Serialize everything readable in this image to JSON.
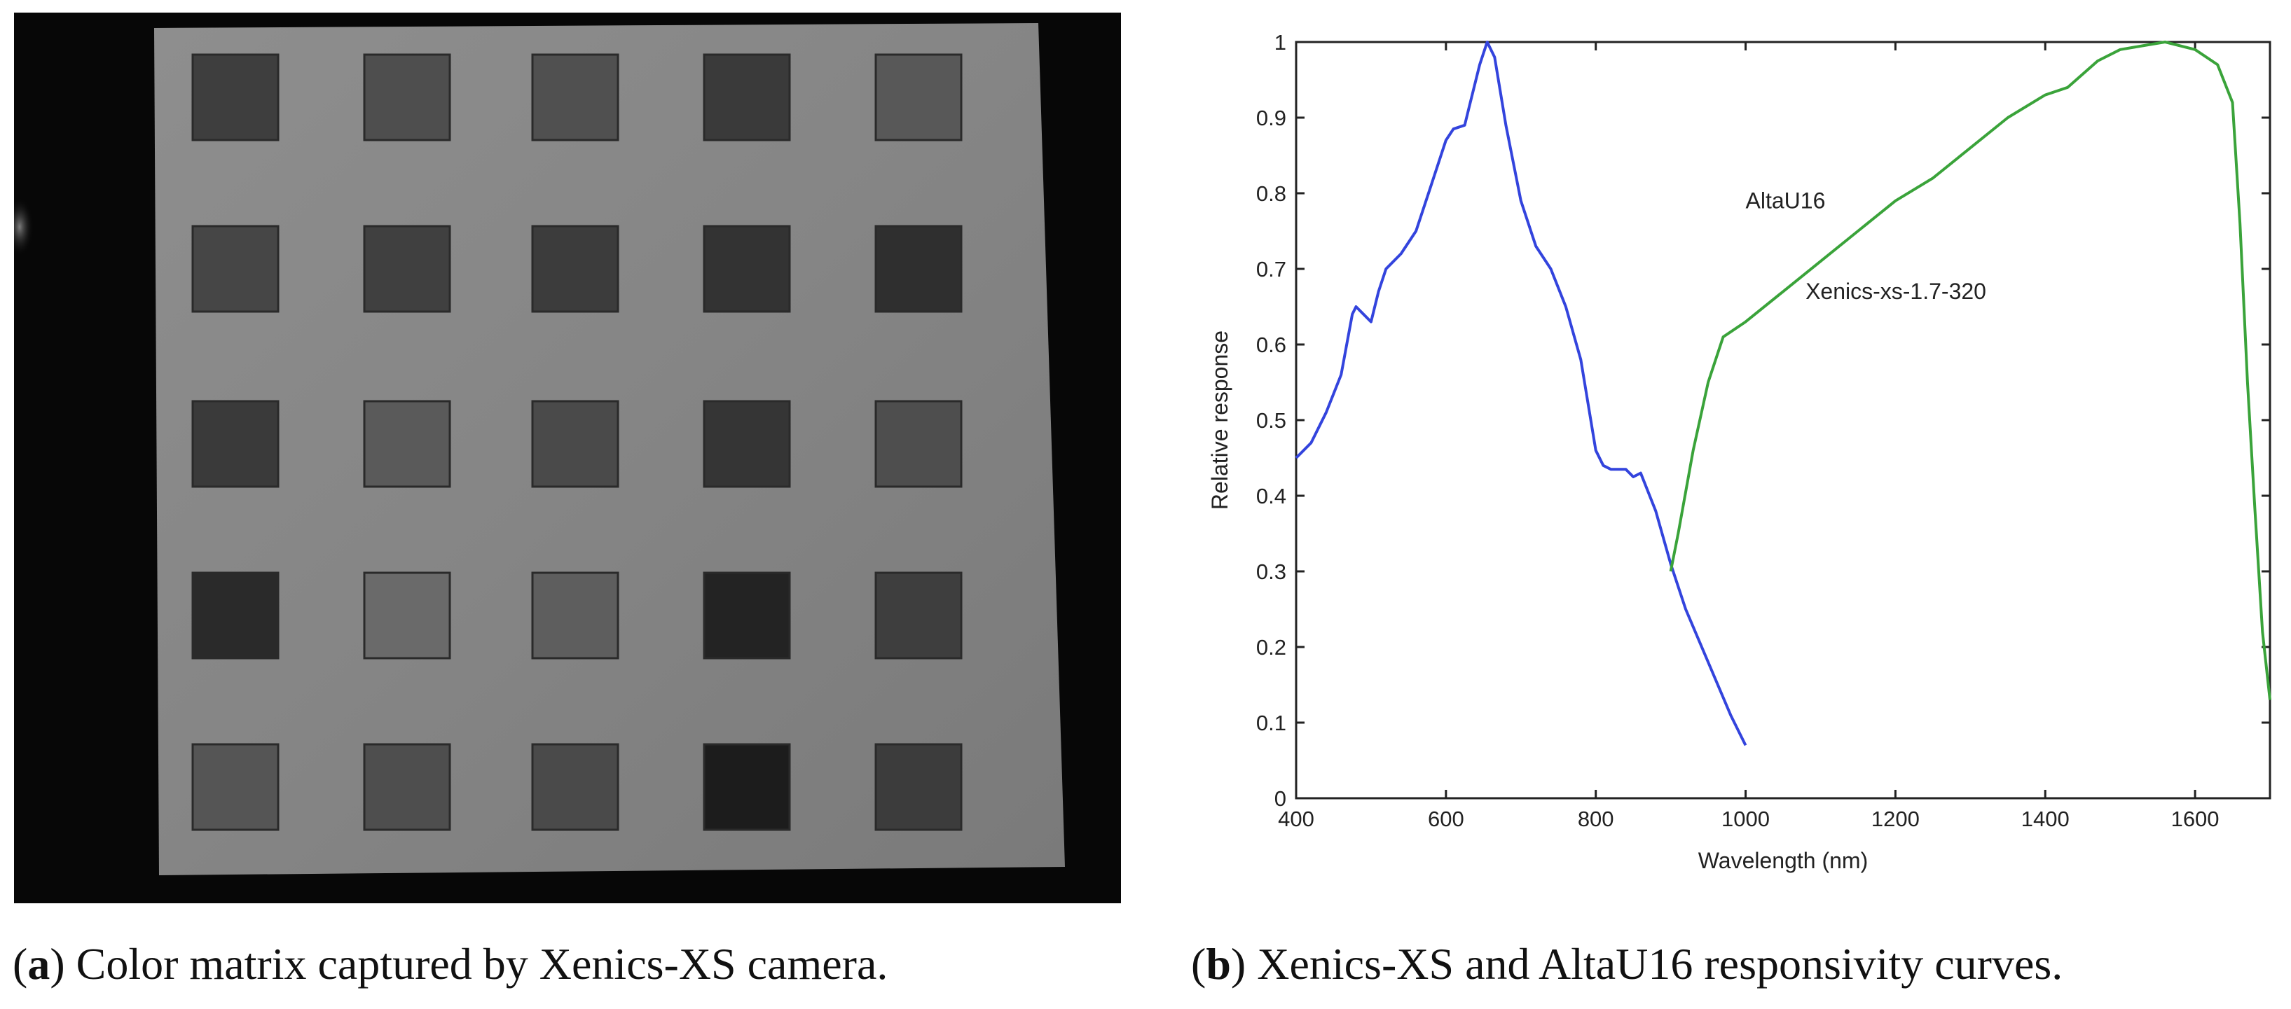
{
  "panel_a": {
    "caption_letter": "a",
    "caption_text": "Color matrix captured by Xenics-XS camera.",
    "patch_grays": [
      [
        "#3e3e3e",
        "#4e4e4e",
        "#505050",
        "#3a3a3a",
        "#585858"
      ],
      [
        "#464646",
        "#404040",
        "#3c3c3c",
        "#333333",
        "#2f2f2f"
      ],
      [
        "#3a3a3a",
        "#5a5a5a",
        "#4a4a4a",
        "#353535",
        "#4e4e4e"
      ],
      [
        "#2a2a2a",
        "#6a6a6a",
        "#5e5e5e",
        "#232323",
        "#3e3e3e"
      ],
      [
        "#555555",
        "#4e4e4e",
        "#4a4a4a",
        "#1c1c1c",
        "#3c3c3c"
      ]
    ]
  },
  "panel_b": {
    "caption_letter": "b",
    "caption_text": "Xenics-XS and AltaU16 responsivity curves."
  },
  "chart_data": {
    "type": "line",
    "xlabel": "Wavelength (nm)",
    "ylabel": "Relative response",
    "xlim": [
      400,
      1700
    ],
    "ylim": [
      0,
      1
    ],
    "xticks": [
      "400",
      "600",
      "800",
      "1000",
      "1200",
      "1400",
      "1600"
    ],
    "xtick_values": [
      400,
      600,
      800,
      1000,
      1200,
      1400,
      1600
    ],
    "yticks": [
      "0",
      "0.1",
      "0.2",
      "0.3",
      "0.4",
      "0.5",
      "0.6",
      "0.7",
      "0.8",
      "0.9",
      "1"
    ],
    "ytick_values": [
      0,
      0.1,
      0.2,
      0.3,
      0.4,
      0.5,
      0.6,
      0.7,
      0.8,
      0.9,
      1
    ],
    "grid": false,
    "series": [
      {
        "name": "AltaU16",
        "color": "#3344dd",
        "label_at": [
          1000,
          0.78
        ],
        "points": [
          [
            400,
            0.45
          ],
          [
            420,
            0.47
          ],
          [
            440,
            0.51
          ],
          [
            460,
            0.56
          ],
          [
            475,
            0.64
          ],
          [
            480,
            0.65
          ],
          [
            490,
            0.64
          ],
          [
            500,
            0.63
          ],
          [
            510,
            0.67
          ],
          [
            520,
            0.7
          ],
          [
            540,
            0.72
          ],
          [
            560,
            0.75
          ],
          [
            580,
            0.81
          ],
          [
            600,
            0.87
          ],
          [
            610,
            0.885
          ],
          [
            625,
            0.89
          ],
          [
            630,
            0.91
          ],
          [
            645,
            0.97
          ],
          [
            655,
            1.0
          ],
          [
            665,
            0.98
          ],
          [
            680,
            0.89
          ],
          [
            700,
            0.79
          ],
          [
            720,
            0.73
          ],
          [
            740,
            0.7
          ],
          [
            760,
            0.65
          ],
          [
            780,
            0.58
          ],
          [
            800,
            0.46
          ],
          [
            810,
            0.44
          ],
          [
            820,
            0.435
          ],
          [
            840,
            0.435
          ],
          [
            850,
            0.425
          ],
          [
            860,
            0.43
          ],
          [
            880,
            0.38
          ],
          [
            900,
            0.31
          ],
          [
            920,
            0.25
          ],
          [
            950,
            0.18
          ],
          [
            980,
            0.11
          ],
          [
            1000,
            0.07
          ]
        ]
      },
      {
        "name": "Xenics-xs-1.7-320",
        "color": "#3aa33a",
        "label_at": [
          1080,
          0.66
        ],
        "points": [
          [
            900,
            0.3
          ],
          [
            910,
            0.35
          ],
          [
            930,
            0.46
          ],
          [
            950,
            0.55
          ],
          [
            970,
            0.61
          ],
          [
            1000,
            0.63
          ],
          [
            1050,
            0.67
          ],
          [
            1100,
            0.71
          ],
          [
            1150,
            0.75
          ],
          [
            1200,
            0.79
          ],
          [
            1250,
            0.82
          ],
          [
            1300,
            0.86
          ],
          [
            1350,
            0.9
          ],
          [
            1400,
            0.93
          ],
          [
            1430,
            0.94
          ],
          [
            1470,
            0.975
          ],
          [
            1500,
            0.99
          ],
          [
            1530,
            0.995
          ],
          [
            1560,
            1.0
          ],
          [
            1600,
            0.99
          ],
          [
            1630,
            0.97
          ],
          [
            1650,
            0.92
          ],
          [
            1660,
            0.76
          ],
          [
            1670,
            0.55
          ],
          [
            1680,
            0.38
          ],
          [
            1690,
            0.22
          ],
          [
            1700,
            0.13
          ]
        ]
      }
    ]
  }
}
